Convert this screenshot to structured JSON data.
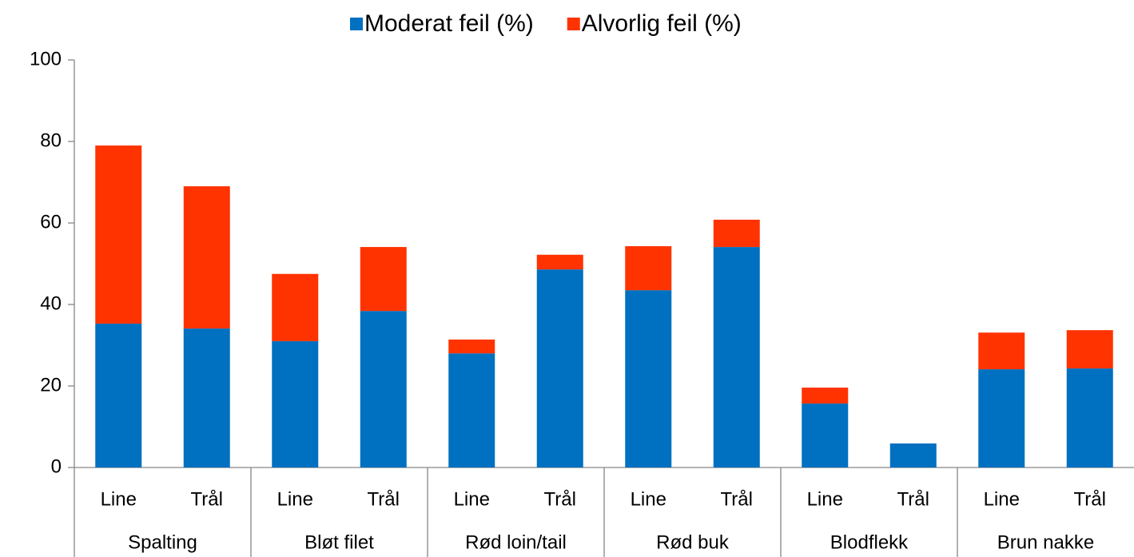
{
  "chart_data": {
    "type": "stacked_bar",
    "categories": [
      "Line",
      "Trål",
      "Line",
      "Trål",
      "Line",
      "Trål",
      "Line",
      "Trål",
      "Line",
      "Trål",
      "Line",
      "Trål"
    ],
    "groups": [
      "Spalting",
      "Bløt filet",
      "Rød loin/tail",
      "Rød buk",
      "Blodflekk",
      "Brun nakke"
    ],
    "series": [
      {
        "name": "Moderat feil (%)",
        "color": "#0070c0",
        "values": [
          35.3,
          34.1,
          31.0,
          38.4,
          28.0,
          48.6,
          43.5,
          54.1,
          15.7,
          5.9,
          24.1,
          24.3
        ]
      },
      {
        "name": "Alvorlig feil (%)",
        "color": "#ff3300",
        "values": [
          43.7,
          34.9,
          16.5,
          15.7,
          3.4,
          3.6,
          10.8,
          6.7,
          3.9,
          0,
          9.0,
          9.4
        ]
      }
    ],
    "ylim": [
      0,
      100
    ],
    "yticks": [
      0,
      20,
      40,
      60,
      80,
      100
    ],
    "grid": false,
    "legend": "top"
  }
}
